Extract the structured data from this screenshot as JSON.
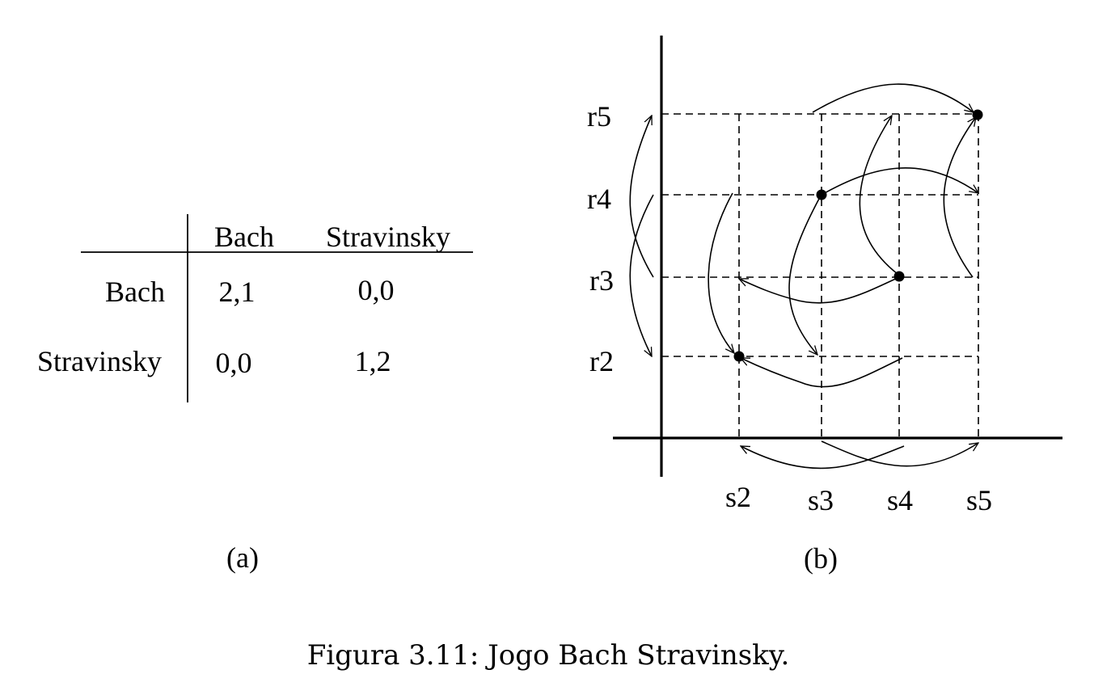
{
  "panel_a": {
    "col_headers": [
      "Bach",
      "Stravinsky"
    ],
    "rows": [
      {
        "label": "Bach",
        "cells": [
          "2,1",
          "0,0"
        ]
      },
      {
        "label": "Stravinsky",
        "cells": [
          "0,0",
          "1,2"
        ]
      }
    ],
    "tag": "(a)"
  },
  "panel_b": {
    "y_labels": [
      "r5",
      "r4",
      "r3",
      "r2"
    ],
    "x_labels": [
      "s2",
      "s3",
      "s4",
      "s5"
    ],
    "tag": "(b)"
  },
  "caption": "Figura 3.11: Jogo Bach Stravinsky."
}
